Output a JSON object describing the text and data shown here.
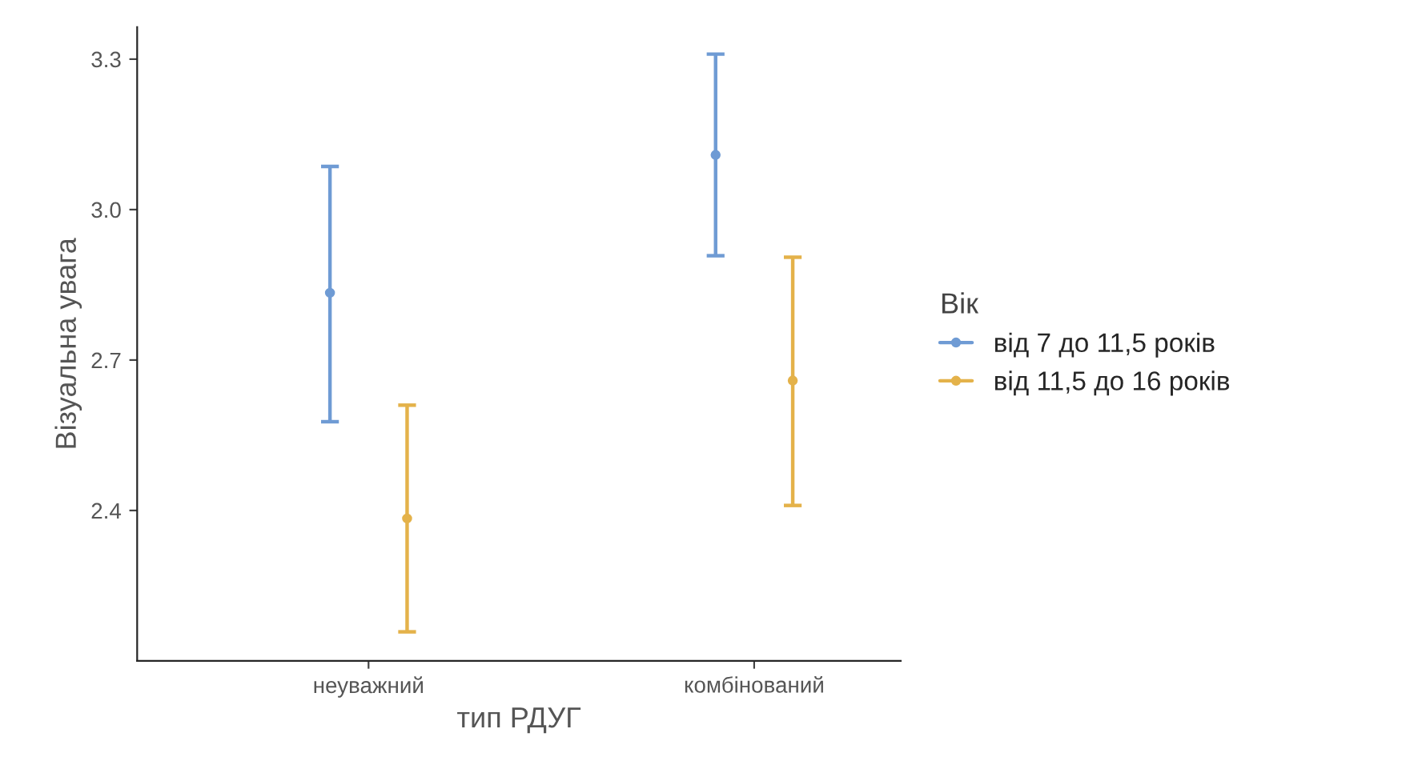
{
  "chart_data": {
    "type": "scatter",
    "xlabel": "тип РДУГ",
    "ylabel": "Візуальна увага",
    "legend_title": "Вік",
    "categories": [
      "неуважний",
      "комбінований"
    ],
    "series": [
      {
        "name": "від 7 до 11,5 років",
        "color": "#6f9bd4",
        "values": [
          2.834,
          3.109
        ],
        "errors": [
          [
            2.577,
            3.086
          ],
          [
            2.908,
            3.31
          ]
        ]
      },
      {
        "name": "від 11,5 до 16 років",
        "color": "#e4b24a",
        "values": [
          2.384,
          2.659
        ],
        "errors": [
          [
            2.158,
            2.61
          ],
          [
            2.41,
            2.905
          ]
        ]
      }
    ],
    "ylim": [
      2.1,
      3.364
    ],
    "yticks": [
      {
        "value": 2.4,
        "label": "2.4"
      },
      {
        "value": 2.7,
        "label": "2.7"
      },
      {
        "value": 3.0,
        "label": "3.0"
      },
      {
        "value": 3.3,
        "label": "3.3"
      }
    ],
    "grid": false,
    "legend": "right",
    "marker": "circle"
  }
}
